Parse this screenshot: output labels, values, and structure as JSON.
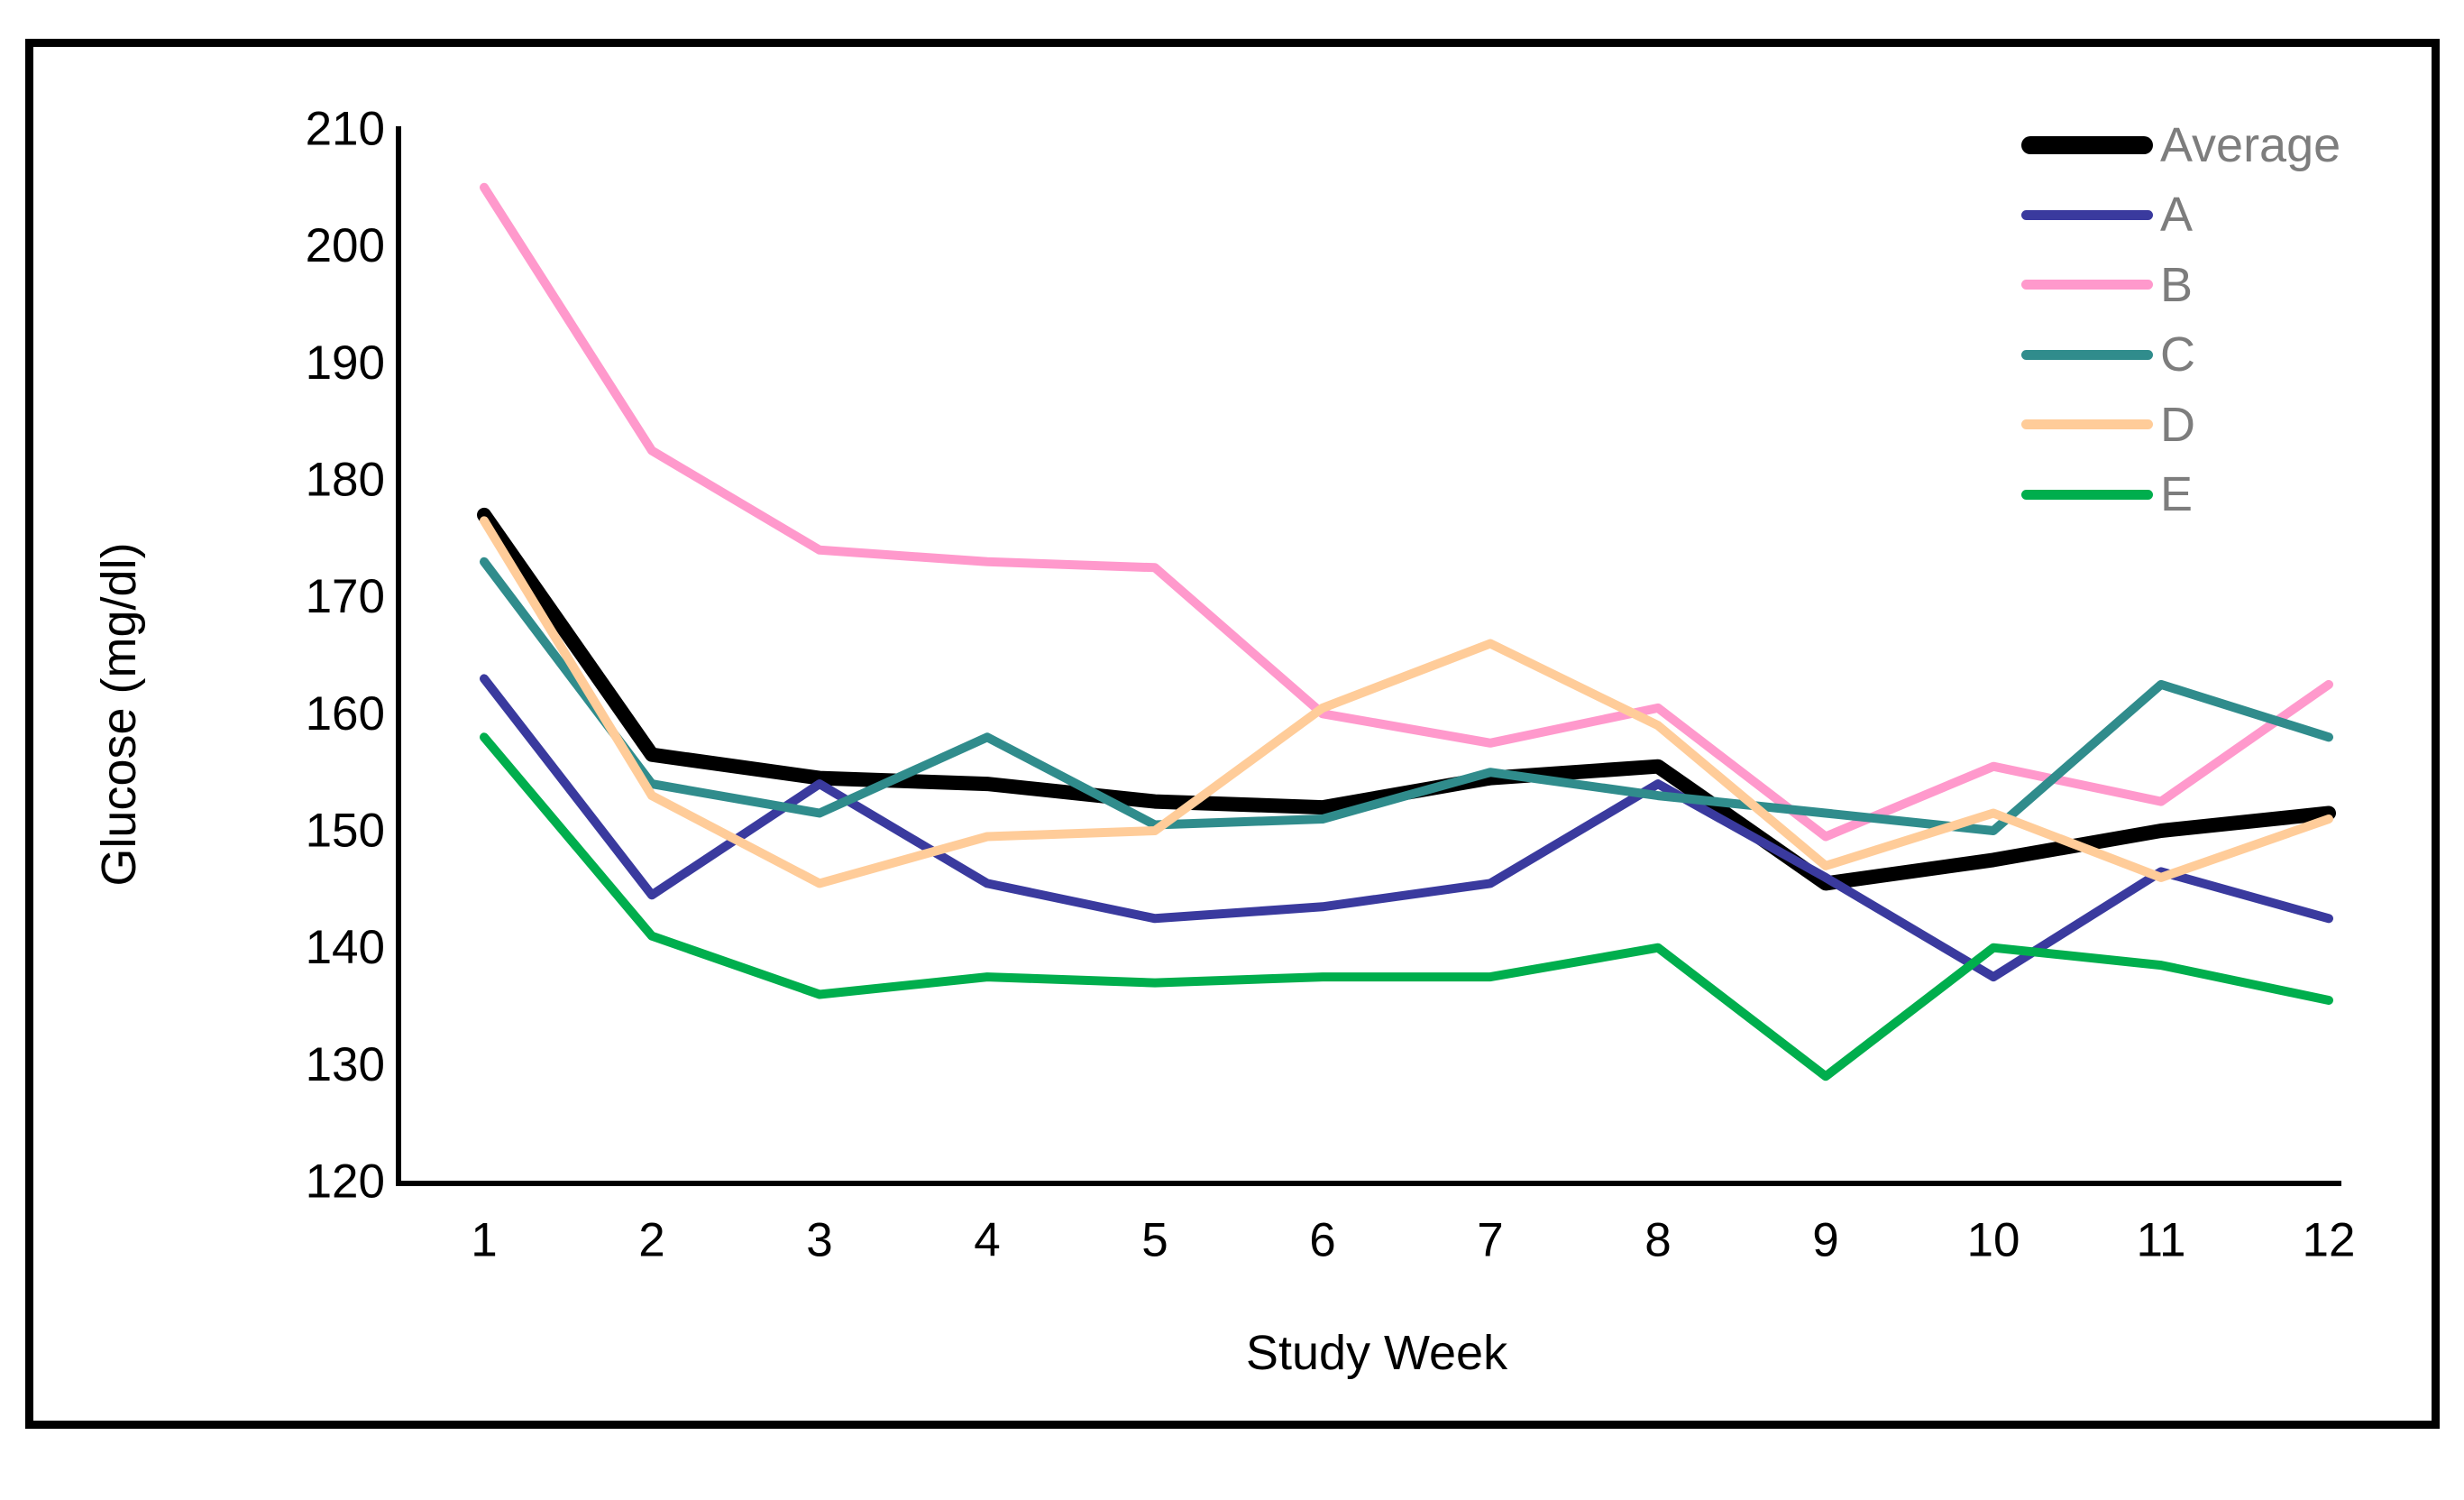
{
  "chart_data": {
    "type": "line",
    "title": "",
    "xlabel": "Study Week",
    "ylabel": "Glucose (mg/dl)",
    "x": [
      1,
      2,
      3,
      4,
      5,
      6,
      7,
      8,
      9,
      10,
      11,
      12
    ],
    "ylim": [
      120,
      210
    ],
    "ytick_step": 10,
    "grid": false,
    "legend_position": "top-right",
    "legend_text_color": "#7d7d7d",
    "axis_color": "#000000",
    "series": [
      {
        "name": "Average",
        "color": "#000000",
        "thick": true,
        "values": [
          177,
          156.5,
          154.5,
          154,
          152.5,
          152,
          154.5,
          155.5,
          145.5,
          147.5,
          150,
          151.5
        ]
      },
      {
        "name": "A",
        "color": "#3A3A9E",
        "thick": false,
        "values": [
          163,
          144.5,
          154,
          145.5,
          142.5,
          143.5,
          145.5,
          154,
          146,
          137.5,
          146.5,
          142.5
        ]
      },
      {
        "name": "B",
        "color": "#FF99CC",
        "thick": false,
        "values": [
          205,
          182.5,
          174,
          173,
          172.5,
          160,
          157.5,
          160.5,
          149.5,
          155.5,
          152.5,
          162.5
        ]
      },
      {
        "name": "C",
        "color": "#308C8C",
        "thick": false,
        "values": [
          173,
          154,
          151.5,
          158,
          150.5,
          151,
          155,
          153,
          151.5,
          150,
          162.5,
          158
        ]
      },
      {
        "name": "D",
        "color": "#FFCC99",
        "thick": false,
        "values": [
          176.5,
          153,
          145.5,
          149.5,
          150,
          160.5,
          166,
          159,
          147,
          151.5,
          146,
          151
        ]
      },
      {
        "name": "E",
        "color": "#00AE4D",
        "thick": false,
        "values": [
          158,
          141,
          136,
          137.5,
          137,
          137.5,
          137.5,
          140,
          129,
          140,
          138.5,
          135.5
        ]
      }
    ]
  }
}
